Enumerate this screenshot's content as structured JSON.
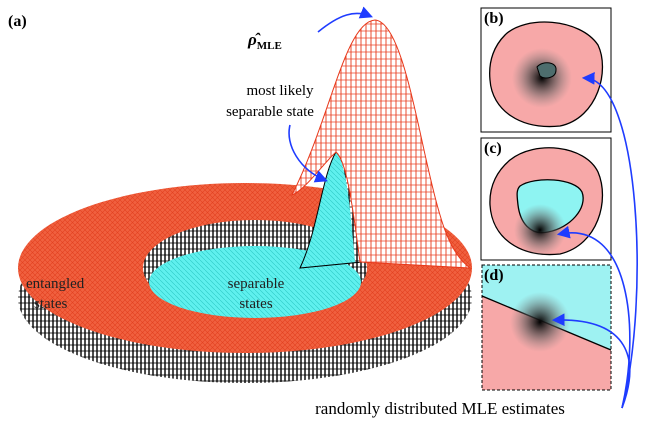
{
  "panels": {
    "a": {
      "label": "(a)",
      "estimator": "ρ̂",
      "estimator_sub": "MLE",
      "annotation": [
        "most likely",
        "separable state"
      ],
      "entangled_label": [
        "entangled",
        "states"
      ],
      "separable_label": [
        "separable",
        "states"
      ]
    },
    "b": {
      "label": "(b)"
    },
    "c": {
      "label": "(c)"
    },
    "d": {
      "label": "(d)"
    }
  },
  "caption": "randomly distributed MLE estimates"
}
